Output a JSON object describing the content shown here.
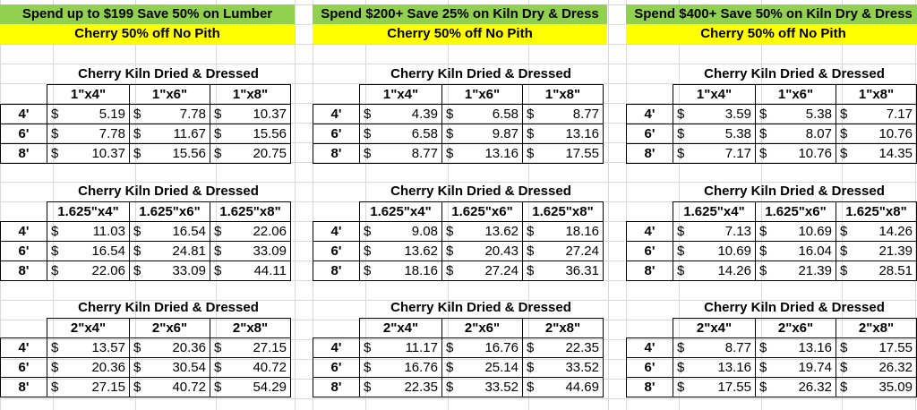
{
  "promos": [
    {
      "headline": "Spend up to $199 Save 50% on Lumber",
      "subline": "Cherry  50% off No Pith"
    },
    {
      "headline": "Spend $200+ Save 25% on Kiln Dry & Dress",
      "subline": "Cherry  50% off No Pith"
    },
    {
      "headline": "Spend $400+ Save 50% on Kiln Dry & Dress",
      "subline": "Cherry  50% off No Pith"
    }
  ],
  "table_title": "Cherry Kiln Dried & Dressed",
  "currency_symbol": "$",
  "lengths": [
    "4'",
    "6'",
    "8'"
  ],
  "sizes": [
    [
      "1\"x4\"",
      "1\"x6\"",
      "1\"x8\""
    ],
    [
      "1.625\"x4\"",
      "1.625\"x6\"",
      "1.625\"x8\""
    ],
    [
      "2\"x4\"",
      "2\"x6\"",
      "2\"x8\""
    ]
  ],
  "prices": [
    [
      [
        [
          "5.19",
          "7.78",
          "10.37"
        ],
        [
          "7.78",
          "11.67",
          "15.56"
        ],
        [
          "10.37",
          "15.56",
          "20.75"
        ]
      ],
      [
        [
          "11.03",
          "16.54",
          "22.06"
        ],
        [
          "16.54",
          "24.81",
          "33.09"
        ],
        [
          "22.06",
          "33.09",
          "44.11"
        ]
      ],
      [
        [
          "13.57",
          "20.36",
          "27.15"
        ],
        [
          "20.36",
          "30.54",
          "40.72"
        ],
        [
          "27.15",
          "40.72",
          "54.29"
        ]
      ]
    ],
    [
      [
        [
          "4.39",
          "6.58",
          "8.77"
        ],
        [
          "6.58",
          "9.87",
          "13.16"
        ],
        [
          "8.77",
          "13.16",
          "17.55"
        ]
      ],
      [
        [
          "9.08",
          "13.62",
          "18.16"
        ],
        [
          "13.62",
          "20.43",
          "27.24"
        ],
        [
          "18.16",
          "27.24",
          "36.31"
        ]
      ],
      [
        [
          "11.17",
          "16.76",
          "22.35"
        ],
        [
          "16.76",
          "25.14",
          "33.52"
        ],
        [
          "22.35",
          "33.52",
          "44.69"
        ]
      ]
    ],
    [
      [
        [
          "3.59",
          "5.38",
          "7.17"
        ],
        [
          "5.38",
          "8.07",
          "10.76"
        ],
        [
          "7.17",
          "10.76",
          "14.35"
        ]
      ],
      [
        [
          "7.13",
          "10.69",
          "14.26"
        ],
        [
          "10.69",
          "16.04",
          "21.39"
        ],
        [
          "14.26",
          "21.39",
          "28.51"
        ]
      ],
      [
        [
          "8.77",
          "13.16",
          "17.55"
        ],
        [
          "13.16",
          "19.74",
          "26.32"
        ],
        [
          "17.55",
          "26.32",
          "35.09"
        ]
      ]
    ]
  ],
  "colors": {
    "promo_green": "#92d050",
    "promo_yellow": "#ffff00",
    "gridline": "#d9d9d9"
  }
}
